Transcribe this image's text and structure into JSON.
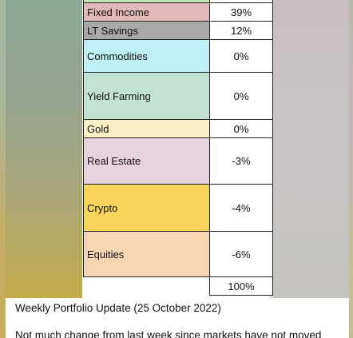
{
  "message": {
    "table": {
      "rows": [
        {
          "name": "",
          "value": "",
          "color": "#c4e6b7"
        },
        {
          "name": "Fixed Income",
          "value": "39%",
          "color": "#e3b8b9"
        },
        {
          "name": "LT Savings",
          "value": "12%",
          "color": "#a9a9a9"
        },
        {
          "name": "Commodities",
          "value": "0%",
          "color": "#bff0f7"
        },
        {
          "name": "Yield Farming",
          "value": "0%",
          "color": "#c2e3d3"
        },
        {
          "name": "Gold",
          "value": "0%",
          "color": "#fdf0c9"
        },
        {
          "name": "Real Estate",
          "value": "-3%",
          "color": "#e7d2df"
        },
        {
          "name": "Crypto",
          "value": "-4%",
          "color": "#f8d45b"
        },
        {
          "name": "Equities",
          "value": "-6%",
          "color": "#f8d5b2"
        }
      ],
      "total": "100%"
    },
    "caption": "Weekly Portfolio Update (25 October 2022)",
    "body_line": "Not much change from last week since markets have not moved"
  }
}
